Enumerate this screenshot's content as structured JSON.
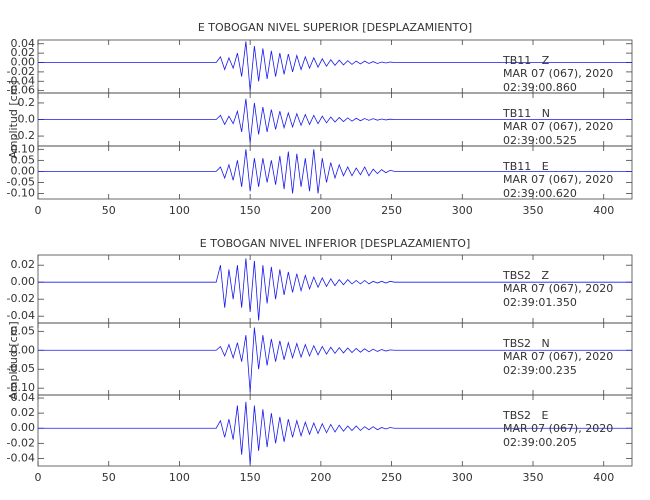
{
  "chart_data": [
    {
      "type": "line",
      "title": "E TOBOGAN NIVEL SUPERIOR [DESPLAZAMIENTO]",
      "y_label": "Amplitud [cm]",
      "xlim": [
        0,
        420
      ],
      "xticks": [
        0,
        50,
        100,
        150,
        200,
        250,
        300,
        350,
        400
      ],
      "x": [
        0,
        126,
        129,
        132,
        135,
        138,
        141,
        144,
        147,
        150,
        153,
        156,
        159,
        162,
        165,
        168,
        171,
        174,
        177,
        180,
        183,
        186,
        189,
        192,
        195,
        198,
        201,
        204,
        207,
        210,
        213,
        216,
        219,
        222,
        225,
        228,
        231,
        234,
        237,
        240,
        243,
        246,
        249,
        252,
        420
      ],
      "panels": [
        {
          "station": "TB11   Z",
          "date": "MAR 07 (067), 2020",
          "time": "02:39:00.860",
          "color": "#1a1aee",
          "ylim": [
            -0.065,
            0.048
          ],
          "yticks": [
            0.04,
            0.02,
            {
              "value": 0,
              "label": "0.00"
            },
            -0.02,
            -0.04,
            -0.06
          ],
          "values": [
            0,
            0,
            0.012,
            -0.015,
            0.01,
            -0.012,
            0.02,
            -0.03,
            0.045,
            -0.06,
            0.035,
            -0.04,
            0.03,
            -0.035,
            0.025,
            -0.03,
            0.02,
            -0.025,
            0.018,
            -0.02,
            0.015,
            -0.015,
            0.012,
            -0.012,
            0.01,
            -0.01,
            0.008,
            -0.008,
            0.006,
            -0.006,
            0.005,
            -0.005,
            0.004,
            -0.004,
            0.003,
            -0.003,
            0.003,
            -0.002,
            0.002,
            -0.002,
            0.001,
            -0.001,
            0.001,
            0,
            0
          ]
        },
        {
          "station": "TB11   N",
          "date": "MAR 07 (067), 2020",
          "time": "02:39:00.525",
          "color": "#1a1aee",
          "ylim": [
            -0.32,
            0.32
          ],
          "yticks": [
            0.2,
            {
              "value": 0,
              "label": "0.0"
            },
            -0.2
          ],
          "values": [
            0,
            0,
            0.05,
            -0.06,
            0.04,
            -0.05,
            0.1,
            -0.15,
            0.25,
            -0.28,
            0.2,
            -0.18,
            0.15,
            -0.15,
            0.12,
            -0.12,
            0.1,
            -0.1,
            0.08,
            -0.09,
            0.07,
            -0.07,
            0.06,
            -0.06,
            0.05,
            -0.05,
            0.04,
            -0.04,
            0.03,
            -0.03,
            0.025,
            -0.025,
            0.02,
            -0.02,
            0.015,
            -0.015,
            0.012,
            -0.01,
            0.01,
            -0.008,
            0.006,
            -0.005,
            0.004,
            0,
            0
          ]
        },
        {
          "station": "TB11   E",
          "date": "MAR 07 (067), 2020",
          "time": "02:39:00.620",
          "color": "#1a1aee",
          "ylim": [
            -0.125,
            0.115
          ],
          "yticks": [
            {
              "value": 0.1,
              "label": "0.10"
            },
            0.05,
            {
              "value": 0,
              "label": "0.00"
            },
            -0.05,
            {
              "value": -0.1,
              "label": "-0.10"
            }
          ],
          "values": [
            0,
            0,
            0.02,
            -0.03,
            0.03,
            -0.04,
            0.05,
            -0.07,
            0.1,
            -0.09,
            0.06,
            -0.07,
            0.06,
            -0.05,
            0.05,
            -0.06,
            0.07,
            -0.08,
            0.09,
            -0.1,
            0.08,
            -0.07,
            0.06,
            -0.09,
            0.1,
            -0.1,
            0.06,
            -0.05,
            0.04,
            -0.03,
            0.03,
            -0.02,
            0.02,
            -0.02,
            0.015,
            -0.015,
            0.02,
            -0.02,
            0.01,
            -0.01,
            0.008,
            -0.006,
            0.005,
            0,
            0
          ]
        }
      ]
    },
    {
      "type": "line",
      "title": "E TOBOGAN NIVEL INFERIOR [DESPLAZAMIENTO]",
      "y_label": "Amplitud [cm]",
      "xlim": [
        0,
        420
      ],
      "xticks": [
        0,
        50,
        100,
        150,
        200,
        250,
        300,
        350,
        400
      ],
      "x": [
        0,
        126,
        129,
        132,
        135,
        138,
        141,
        144,
        147,
        150,
        153,
        156,
        159,
        162,
        165,
        168,
        171,
        174,
        177,
        180,
        183,
        186,
        189,
        192,
        195,
        198,
        201,
        204,
        207,
        210,
        213,
        216,
        219,
        222,
        225,
        228,
        231,
        234,
        237,
        240,
        243,
        246,
        249,
        252,
        420
      ],
      "panels": [
        {
          "station": "TBS2   Z",
          "date": "MAR 07 (067), 2020",
          "time": "02:39:01.350",
          "color": "#1a1aee",
          "ylim": [
            -0.048,
            0.032
          ],
          "yticks": [
            0.02,
            {
              "value": 0,
              "label": "0.00"
            },
            -0.02,
            -0.04
          ],
          "values": [
            0,
            0,
            0.02,
            -0.03,
            0.015,
            -0.02,
            0.02,
            -0.03,
            0.028,
            -0.035,
            0.025,
            -0.045,
            0.02,
            -0.025,
            0.018,
            -0.02,
            0.015,
            -0.015,
            0.012,
            -0.012,
            0.01,
            -0.01,
            0.008,
            -0.008,
            0.006,
            -0.006,
            0.005,
            -0.005,
            0.004,
            -0.004,
            0.003,
            -0.003,
            0.003,
            -0.002,
            0.002,
            -0.002,
            0.002,
            -0.002,
            0.001,
            -0.001,
            0.001,
            -0.001,
            0.001,
            0,
            0
          ]
        },
        {
          "station": "TBS2   N",
          "date": "MAR 07 (067), 2020",
          "time": "02:39:00.235",
          "color": "#1a1aee",
          "ylim": [
            -0.118,
            0.072
          ],
          "yticks": [
            0.05,
            {
              "value": 0,
              "label": "0.00"
            },
            -0.05,
            {
              "value": -0.1,
              "label": "-0.10"
            }
          ],
          "values": [
            0,
            0,
            0.01,
            -0.015,
            0.015,
            -0.02,
            0.02,
            -0.03,
            0.04,
            -0.11,
            0.06,
            -0.05,
            0.04,
            -0.04,
            0.03,
            -0.03,
            0.025,
            -0.025,
            0.02,
            -0.02,
            0.018,
            -0.018,
            0.015,
            -0.015,
            0.012,
            -0.012,
            0.01,
            -0.01,
            0.008,
            -0.008,
            0.007,
            -0.007,
            0.006,
            -0.006,
            0.005,
            -0.005,
            0.004,
            -0.004,
            0.003,
            -0.003,
            0.002,
            -0.002,
            0.001,
            0,
            0
          ]
        },
        {
          "station": "TBS2   E",
          "date": "MAR 07 (067), 2020",
          "time": "02:39:00.205",
          "color": "#1a1aee",
          "ylim": [
            -0.05,
            0.044
          ],
          "yticks": [
            0.04,
            0.02,
            {
              "value": 0,
              "label": "0.00"
            },
            -0.02,
            -0.04
          ],
          "values": [
            0,
            0,
            0.01,
            -0.012,
            0.012,
            -0.015,
            0.03,
            -0.035,
            0.035,
            -0.048,
            0.03,
            -0.03,
            0.025,
            -0.025,
            0.02,
            -0.02,
            0.015,
            -0.018,
            0.012,
            -0.012,
            0.01,
            -0.01,
            0.008,
            -0.008,
            0.007,
            -0.007,
            0.006,
            -0.006,
            0.005,
            -0.005,
            0.004,
            -0.004,
            0.003,
            -0.003,
            0.003,
            -0.003,
            0.002,
            -0.002,
            0.002,
            -0.002,
            0.001,
            -0.001,
            0.001,
            0,
            0
          ]
        }
      ]
    }
  ]
}
